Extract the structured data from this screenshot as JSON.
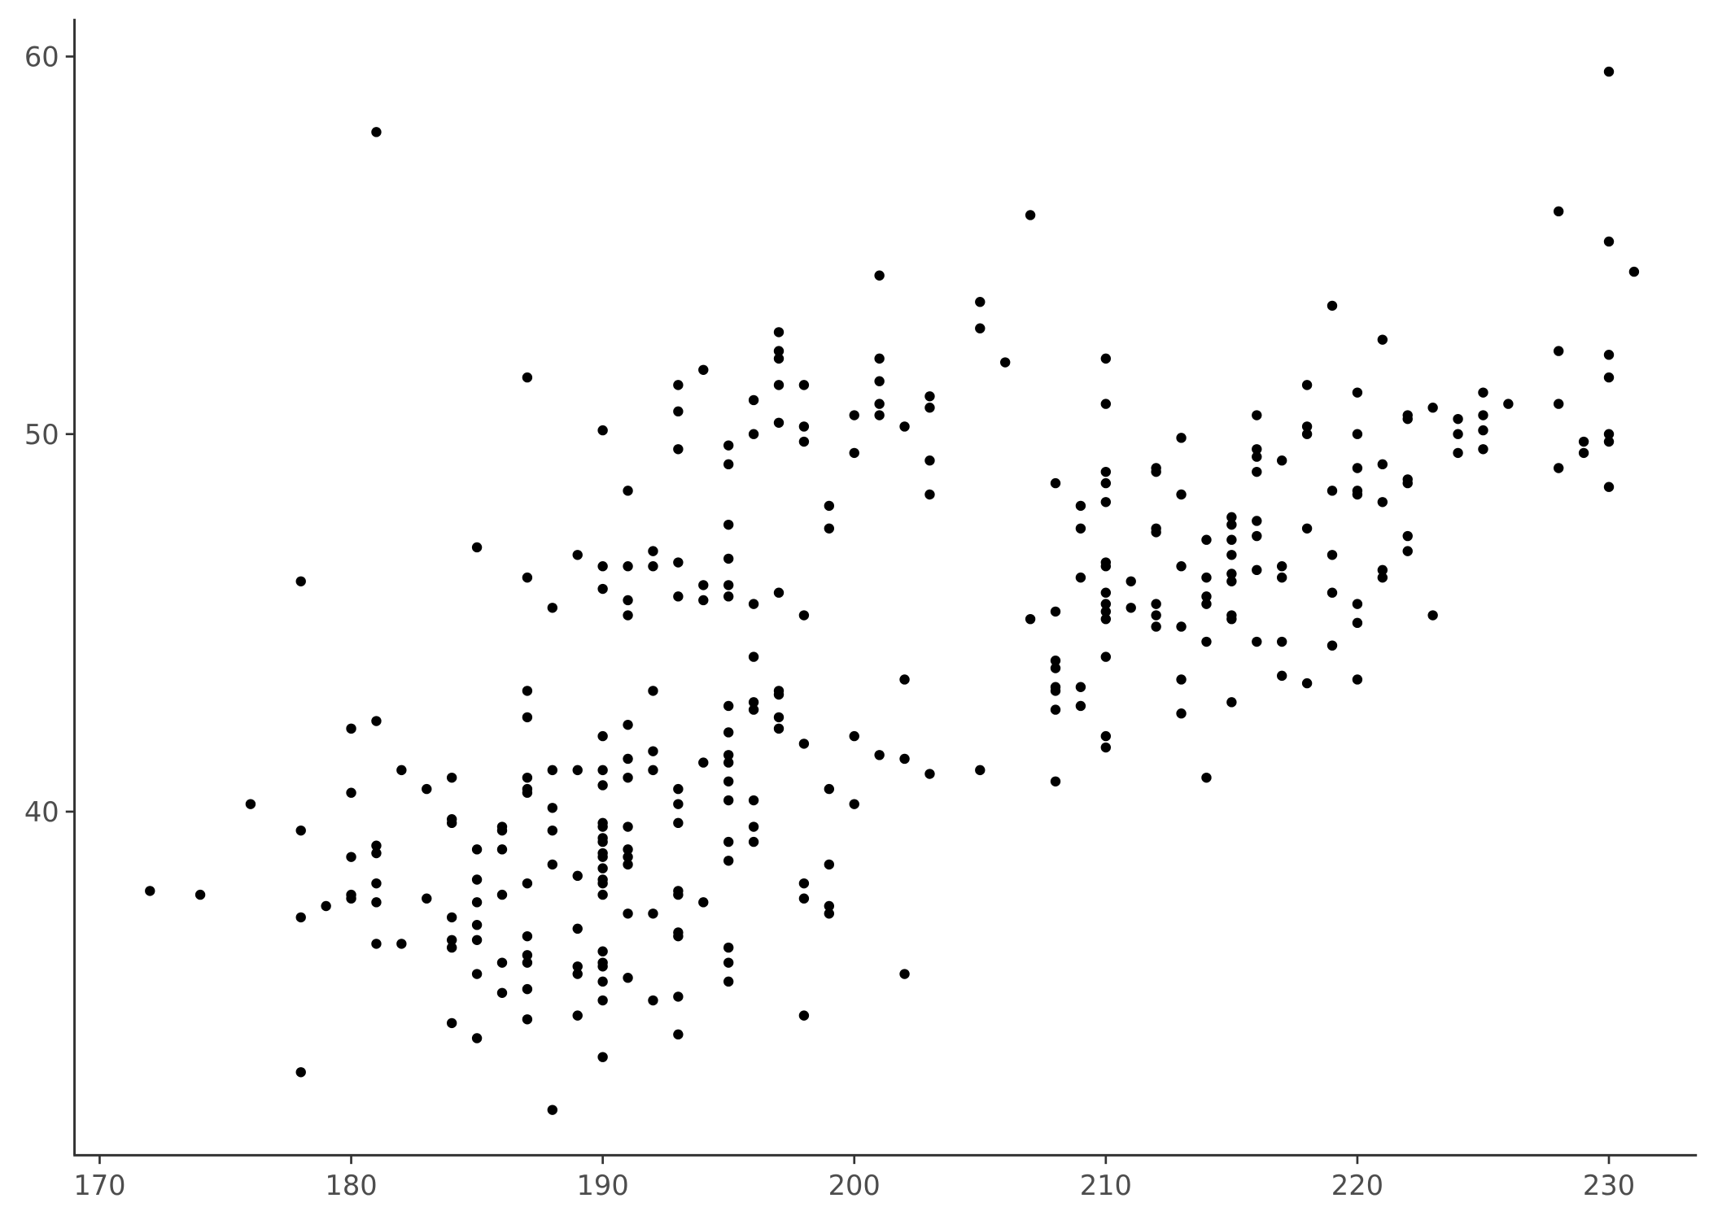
{
  "chart_data": {
    "type": "scatter",
    "title": "",
    "xlabel": "",
    "ylabel": "",
    "xlim": [
      169,
      233.5
    ],
    "ylim": [
      30.9,
      61
    ],
    "x_ticks": [
      "170",
      "180",
      "190",
      "200",
      "210",
      "220",
      "230"
    ],
    "y_ticks": [
      "40",
      "50",
      "60"
    ],
    "grid": false,
    "point_color": "#000000",
    "axis_color": "#333333",
    "points": [
      [
        172,
        37.9
      ],
      [
        174,
        37.8
      ],
      [
        176,
        40.2
      ],
      [
        178,
        46.1
      ],
      [
        178,
        39.5
      ],
      [
        178,
        37.2
      ],
      [
        178,
        33.1
      ],
      [
        179,
        37.5
      ],
      [
        180,
        42.2
      ],
      [
        180,
        40.5
      ],
      [
        180,
        38.8
      ],
      [
        180,
        37.8
      ],
      [
        180,
        37.7
      ],
      [
        181,
        58.0
      ],
      [
        181,
        42.4
      ],
      [
        181,
        39.1
      ],
      [
        181,
        38.9
      ],
      [
        181,
        38.1
      ],
      [
        181,
        37.6
      ],
      [
        181,
        36.5
      ],
      [
        182,
        41.1
      ],
      [
        182,
        36.5
      ],
      [
        183,
        40.6
      ],
      [
        183,
        37.7
      ],
      [
        184,
        40.9
      ],
      [
        184,
        39.8
      ],
      [
        184,
        39.7
      ],
      [
        184,
        37.2
      ],
      [
        184,
        36.6
      ],
      [
        184,
        36.4
      ],
      [
        184,
        34.4
      ],
      [
        185,
        47.0
      ],
      [
        185,
        39.0
      ],
      [
        185,
        38.2
      ],
      [
        185,
        37.6
      ],
      [
        185,
        37.0
      ],
      [
        185,
        36.6
      ],
      [
        185,
        35.7
      ],
      [
        185,
        34.0
      ],
      [
        186,
        39.6
      ],
      [
        186,
        39.5
      ],
      [
        186,
        39.0
      ],
      [
        186,
        37.8
      ],
      [
        186,
        36.0
      ],
      [
        186,
        35.2
      ],
      [
        187,
        51.5
      ],
      [
        187,
        46.2
      ],
      [
        187,
        43.2
      ],
      [
        187,
        42.5
      ],
      [
        187,
        40.9
      ],
      [
        187,
        40.6
      ],
      [
        187,
        40.5
      ],
      [
        187,
        38.1
      ],
      [
        187,
        36.7
      ],
      [
        187,
        36.2
      ],
      [
        187,
        36.0
      ],
      [
        187,
        35.3
      ],
      [
        187,
        34.5
      ],
      [
        188,
        45.4
      ],
      [
        188,
        41.1
      ],
      [
        188,
        40.1
      ],
      [
        188,
        39.5
      ],
      [
        188,
        38.6
      ],
      [
        188,
        32.1
      ],
      [
        189,
        46.8
      ],
      [
        189,
        41.1
      ],
      [
        189,
        38.3
      ],
      [
        189,
        36.9
      ],
      [
        189,
        35.9
      ],
      [
        189,
        35.7
      ],
      [
        189,
        34.6
      ],
      [
        190,
        50.1
      ],
      [
        190,
        46.5
      ],
      [
        190,
        45.9
      ],
      [
        190,
        42.0
      ],
      [
        190,
        41.1
      ],
      [
        190,
        40.7
      ],
      [
        190,
        39.7
      ],
      [
        190,
        39.6
      ],
      [
        190,
        39.3
      ],
      [
        190,
        39.2
      ],
      [
        190,
        38.9
      ],
      [
        190,
        38.8
      ],
      [
        190,
        38.5
      ],
      [
        190,
        38.2
      ],
      [
        190,
        38.1
      ],
      [
        190,
        37.8
      ],
      [
        190,
        36.3
      ],
      [
        190,
        36.0
      ],
      [
        190,
        35.9
      ],
      [
        190,
        35.5
      ],
      [
        190,
        35.0
      ],
      [
        190,
        33.5
      ],
      [
        191,
        48.5
      ],
      [
        191,
        46.5
      ],
      [
        191,
        45.6
      ],
      [
        191,
        45.2
      ],
      [
        191,
        42.3
      ],
      [
        191,
        41.4
      ],
      [
        191,
        40.9
      ],
      [
        191,
        39.6
      ],
      [
        191,
        39.0
      ],
      [
        191,
        38.8
      ],
      [
        191,
        38.6
      ],
      [
        191,
        37.3
      ],
      [
        191,
        35.6
      ],
      [
        192,
        46.9
      ],
      [
        192,
        46.5
      ],
      [
        192,
        43.2
      ],
      [
        192,
        41.6
      ],
      [
        192,
        41.1
      ],
      [
        192,
        37.3
      ],
      [
        192,
        35.0
      ],
      [
        193,
        51.3
      ],
      [
        193,
        50.6
      ],
      [
        193,
        49.6
      ],
      [
        193,
        46.6
      ],
      [
        193,
        45.7
      ],
      [
        193,
        40.6
      ],
      [
        193,
        40.2
      ],
      [
        193,
        39.7
      ],
      [
        193,
        37.9
      ],
      [
        193,
        37.8
      ],
      [
        193,
        36.8
      ],
      [
        193,
        36.7
      ],
      [
        193,
        35.1
      ],
      [
        193,
        34.1
      ],
      [
        194,
        51.7
      ],
      [
        194,
        46.0
      ],
      [
        194,
        45.6
      ],
      [
        194,
        41.3
      ],
      [
        194,
        37.6
      ],
      [
        195,
        49.7
      ],
      [
        195,
        49.2
      ],
      [
        195,
        47.6
      ],
      [
        195,
        46.7
      ],
      [
        195,
        46.0
      ],
      [
        195,
        45.7
      ],
      [
        195,
        42.8
      ],
      [
        195,
        42.1
      ],
      [
        195,
        41.5
      ],
      [
        195,
        41.3
      ],
      [
        195,
        40.8
      ],
      [
        195,
        40.3
      ],
      [
        195,
        39.2
      ],
      [
        195,
        38.7
      ],
      [
        195,
        36.4
      ],
      [
        195,
        36.0
      ],
      [
        195,
        35.5
      ],
      [
        196,
        50.9
      ],
      [
        196,
        50.0
      ],
      [
        196,
        45.5
      ],
      [
        196,
        44.1
      ],
      [
        196,
        42.9
      ],
      [
        196,
        42.7
      ],
      [
        196,
        40.3
      ],
      [
        196,
        39.6
      ],
      [
        196,
        39.2
      ],
      [
        197,
        52.7
      ],
      [
        197,
        52.2
      ],
      [
        197,
        52.0
      ],
      [
        197,
        51.3
      ],
      [
        197,
        50.3
      ],
      [
        197,
        45.8
      ],
      [
        197,
        43.2
      ],
      [
        197,
        43.1
      ],
      [
        197,
        42.5
      ],
      [
        197,
        42.2
      ],
      [
        198,
        51.3
      ],
      [
        198,
        50.2
      ],
      [
        198,
        49.8
      ],
      [
        198,
        45.2
      ],
      [
        198,
        41.8
      ],
      [
        198,
        38.1
      ],
      [
        198,
        37.7
      ],
      [
        198,
        34.6
      ],
      [
        199,
        48.1
      ],
      [
        199,
        47.5
      ],
      [
        199,
        40.6
      ],
      [
        199,
        38.6
      ],
      [
        199,
        37.5
      ],
      [
        199,
        37.3
      ],
      [
        200,
        50.5
      ],
      [
        200,
        49.5
      ],
      [
        200,
        42.0
      ],
      [
        200,
        40.2
      ],
      [
        201,
        54.2
      ],
      [
        201,
        52.0
      ],
      [
        201,
        51.4
      ],
      [
        201,
        50.8
      ],
      [
        201,
        50.5
      ],
      [
        201,
        41.5
      ],
      [
        202,
        50.2
      ],
      [
        202,
        43.5
      ],
      [
        202,
        41.4
      ],
      [
        202,
        35.7
      ],
      [
        203,
        51.0
      ],
      [
        203,
        50.7
      ],
      [
        203,
        49.3
      ],
      [
        203,
        48.4
      ],
      [
        203,
        41.0
      ],
      [
        205,
        53.5
      ],
      [
        205,
        52.8
      ],
      [
        205,
        41.1
      ],
      [
        206,
        51.9
      ],
      [
        207,
        55.8
      ],
      [
        207,
        45.1
      ],
      [
        208,
        48.7
      ],
      [
        208,
        45.3
      ],
      [
        208,
        44.0
      ],
      [
        208,
        43.8
      ],
      [
        208,
        43.3
      ],
      [
        208,
        43.2
      ],
      [
        208,
        42.7
      ],
      [
        208,
        40.8
      ],
      [
        209,
        48.1
      ],
      [
        209,
        47.5
      ],
      [
        209,
        46.2
      ],
      [
        209,
        43.3
      ],
      [
        209,
        42.8
      ],
      [
        210,
        52.0
      ],
      [
        210,
        50.8
      ],
      [
        210,
        49.0
      ],
      [
        210,
        48.7
      ],
      [
        210,
        48.2
      ],
      [
        210,
        46.6
      ],
      [
        210,
        46.5
      ],
      [
        210,
        45.8
      ],
      [
        210,
        45.5
      ],
      [
        210,
        45.3
      ],
      [
        210,
        45.1
      ],
      [
        210,
        44.1
      ],
      [
        210,
        42.0
      ],
      [
        210,
        41.7
      ],
      [
        211,
        46.1
      ],
      [
        211,
        45.4
      ],
      [
        212,
        49.1
      ],
      [
        212,
        49.0
      ],
      [
        212,
        47.5
      ],
      [
        212,
        47.4
      ],
      [
        212,
        45.5
      ],
      [
        212,
        45.2
      ],
      [
        212,
        44.9
      ],
      [
        213,
        49.9
      ],
      [
        213,
        48.4
      ],
      [
        213,
        46.5
      ],
      [
        213,
        44.9
      ],
      [
        213,
        43.5
      ],
      [
        213,
        42.6
      ],
      [
        214,
        47.2
      ],
      [
        214,
        46.2
      ],
      [
        214,
        45.7
      ],
      [
        214,
        45.5
      ],
      [
        214,
        44.5
      ],
      [
        214,
        40.9
      ],
      [
        215,
        47.8
      ],
      [
        215,
        47.6
      ],
      [
        215,
        47.2
      ],
      [
        215,
        46.8
      ],
      [
        215,
        46.3
      ],
      [
        215,
        46.1
      ],
      [
        215,
        45.2
      ],
      [
        215,
        45.1
      ],
      [
        215,
        42.9
      ],
      [
        216,
        50.5
      ],
      [
        216,
        49.6
      ],
      [
        216,
        49.4
      ],
      [
        216,
        49.0
      ],
      [
        216,
        47.7
      ],
      [
        216,
        47.3
      ],
      [
        216,
        46.4
      ],
      [
        216,
        44.5
      ],
      [
        217,
        49.3
      ],
      [
        217,
        46.5
      ],
      [
        217,
        46.2
      ],
      [
        217,
        44.5
      ],
      [
        217,
        43.6
      ],
      [
        218,
        51.3
      ],
      [
        218,
        50.2
      ],
      [
        218,
        50.0
      ],
      [
        218,
        47.5
      ],
      [
        218,
        43.4
      ],
      [
        219,
        53.4
      ],
      [
        219,
        48.5
      ],
      [
        219,
        46.8
      ],
      [
        219,
        45.8
      ],
      [
        219,
        44.4
      ],
      [
        220,
        51.1
      ],
      [
        220,
        50.0
      ],
      [
        220,
        49.1
      ],
      [
        220,
        48.5
      ],
      [
        220,
        48.4
      ],
      [
        220,
        45.5
      ],
      [
        220,
        45.0
      ],
      [
        220,
        43.5
      ],
      [
        221,
        52.5
      ],
      [
        221,
        49.2
      ],
      [
        221,
        48.2
      ],
      [
        221,
        46.4
      ],
      [
        221,
        46.2
      ],
      [
        222,
        50.5
      ],
      [
        222,
        50.4
      ],
      [
        222,
        48.8
      ],
      [
        222,
        48.7
      ],
      [
        222,
        47.3
      ],
      [
        222,
        46.9
      ],
      [
        223,
        50.7
      ],
      [
        223,
        45.2
      ],
      [
        224,
        50.4
      ],
      [
        224,
        50.0
      ],
      [
        224,
        49.5
      ],
      [
        225,
        51.1
      ],
      [
        225,
        50.5
      ],
      [
        225,
        50.1
      ],
      [
        225,
        49.6
      ],
      [
        226,
        50.8
      ],
      [
        228,
        55.9
      ],
      [
        228,
        52.2
      ],
      [
        228,
        50.8
      ],
      [
        228,
        49.1
      ],
      [
        229,
        49.8
      ],
      [
        229,
        49.5
      ],
      [
        230,
        59.6
      ],
      [
        230,
        55.1
      ],
      [
        230,
        52.1
      ],
      [
        230,
        51.5
      ],
      [
        230,
        50.0
      ],
      [
        230,
        49.8
      ],
      [
        230,
        48.6
      ],
      [
        231,
        54.3
      ]
    ]
  }
}
